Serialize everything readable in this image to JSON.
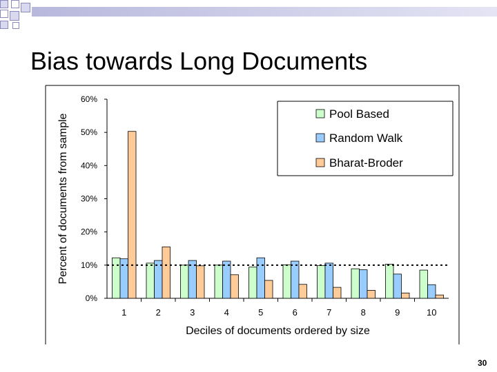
{
  "slide": {
    "title": "Bias towards Long Documents",
    "page_number": "30"
  },
  "colors": {
    "pool": "#ccffcc",
    "walk": "#99ccff",
    "bharat": "#ffcc99",
    "border": "#000000"
  },
  "chart_data": {
    "type": "bar",
    "title": "",
    "xlabel": "Deciles of documents ordered by size",
    "ylabel": "Percent of documents from sample",
    "categories": [
      "1",
      "2",
      "3",
      "4",
      "5",
      "6",
      "7",
      "8",
      "9",
      "10"
    ],
    "y_ticks": [
      "0%",
      "10%",
      "20%",
      "30%",
      "40%",
      "50%",
      "60%"
    ],
    "ylim": [
      0,
      60
    ],
    "grid": false,
    "legend_position": "top-right",
    "reference_line": 10,
    "series": [
      {
        "name": "Pool Based",
        "color": "#ccffcc",
        "values": [
          12.2,
          10.6,
          10.0,
          10.0,
          9.4,
          10.1,
          9.9,
          8.9,
          10.3,
          8.5
        ]
      },
      {
        "name": "Random Walk",
        "color": "#99ccff",
        "values": [
          11.9,
          11.4,
          11.4,
          11.2,
          12.2,
          11.2,
          10.6,
          8.6,
          7.3,
          4.1
        ]
      },
      {
        "name": "Bharat-Broder",
        "color": "#ffcc99",
        "values": [
          50.3,
          15.5,
          9.8,
          7.1,
          5.4,
          4.2,
          3.3,
          2.4,
          1.6,
          1.0
        ]
      }
    ]
  }
}
